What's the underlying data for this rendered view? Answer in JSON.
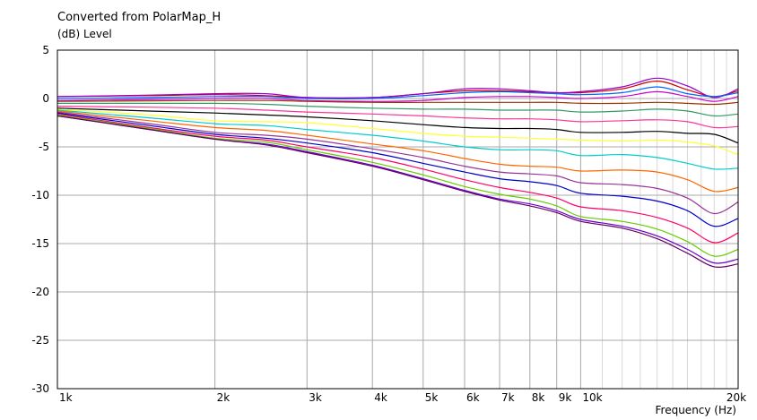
{
  "chart_data": {
    "type": "line",
    "title": "Converted from PolarMap_H",
    "ylabel_unit": "(dB)",
    "ylabel": "Level",
    "xlabel": "Frequency  (Hz)",
    "x_scale": "log",
    "xlim": [
      1000,
      20000
    ],
    "ylim": [
      -30,
      5
    ],
    "grid": true,
    "x_major_ticks": [
      1000,
      2000,
      3000,
      4000,
      5000,
      6000,
      7000,
      8000,
      9000,
      10000,
      20000
    ],
    "x_tick_labels": [
      "1k",
      "2k",
      "3k",
      "4k",
      "5k",
      "6k",
      "7k",
      "8k",
      "9k",
      "10k",
      "20k"
    ],
    "y_ticks": [
      5,
      0,
      -5,
      -10,
      -15,
      -20,
      -25,
      -30
    ],
    "y_tick_labels": [
      "5",
      "0",
      "-5",
      "-10",
      "-15",
      "-20",
      "-25",
      "-30"
    ],
    "x": [
      1000,
      1500,
      2000,
      2500,
      3000,
      4000,
      5000,
      6000,
      7000,
      8000,
      9000,
      10000,
      12000,
      14000,
      16000,
      18000,
      20000
    ],
    "series": [
      {
        "color": "#cc0000",
        "values": [
          0.2,
          0.3,
          0.4,
          0.3,
          0.1,
          0.1,
          0.5,
          0.8,
          0.8,
          0.7,
          0.6,
          0.6,
          1.0,
          1.8,
          0.9,
          0.2,
          0.8
        ]
      },
      {
        "color": "#9900cc",
        "values": [
          0.2,
          0.35,
          0.5,
          0.5,
          0.1,
          0.1,
          0.5,
          1.0,
          1.0,
          0.8,
          0.6,
          0.7,
          1.2,
          2.1,
          1.3,
          0.1,
          1.0
        ]
      },
      {
        "color": "#0066ff",
        "values": [
          0.0,
          0.1,
          0.2,
          0.2,
          0.0,
          0.0,
          0.3,
          0.6,
          0.7,
          0.6,
          0.5,
          0.4,
          0.6,
          1.2,
          0.5,
          0.2,
          0.6
        ]
      },
      {
        "color": "#cc00cc",
        "values": [
          -0.2,
          -0.1,
          0.0,
          0.0,
          -0.2,
          -0.3,
          -0.2,
          0.1,
          0.2,
          0.2,
          0.1,
          0.0,
          0.2,
          0.7,
          0.2,
          -0.3,
          0.2
        ]
      },
      {
        "color": "#993300",
        "values": [
          -0.3,
          -0.25,
          -0.2,
          -0.2,
          -0.3,
          -0.4,
          -0.4,
          -0.4,
          -0.4,
          -0.4,
          -0.4,
          -0.5,
          -0.5,
          -0.4,
          -0.5,
          -0.6,
          -0.4
        ]
      },
      {
        "color": "#339966",
        "values": [
          -0.5,
          -0.5,
          -0.5,
          -0.6,
          -0.8,
          -1.0,
          -1.1,
          -1.1,
          -1.2,
          -1.2,
          -1.2,
          -1.4,
          -1.3,
          -1.1,
          -1.3,
          -1.8,
          -1.6
        ]
      },
      {
        "color": "#ff3399",
        "values": [
          -0.8,
          -0.9,
          -1.0,
          -1.2,
          -1.4,
          -1.6,
          -1.8,
          -2.0,
          -2.1,
          -2.1,
          -2.2,
          -2.4,
          -2.3,
          -2.2,
          -2.4,
          -3.0,
          -2.9
        ]
      },
      {
        "color": "#000000",
        "values": [
          -1.0,
          -1.3,
          -1.5,
          -1.7,
          -1.9,
          -2.3,
          -2.7,
          -3.0,
          -3.1,
          -3.1,
          -3.2,
          -3.5,
          -3.5,
          -3.4,
          -3.6,
          -3.7,
          -4.6
        ]
      },
      {
        "color": "#ffff33",
        "values": [
          -1.1,
          -1.7,
          -2.3,
          -2.4,
          -2.5,
          -3.1,
          -3.6,
          -3.9,
          -4.0,
          -4.1,
          -4.2,
          -4.3,
          -4.4,
          -4.3,
          -4.5,
          -4.9,
          -5.8
        ]
      },
      {
        "color": "#00cccc",
        "values": [
          -1.2,
          -2.0,
          -2.6,
          -2.8,
          -3.2,
          -3.8,
          -4.4,
          -5.0,
          -5.3,
          -5.3,
          -5.4,
          -5.9,
          -5.8,
          -6.1,
          -6.7,
          -7.3,
          -7.2
        ]
      },
      {
        "color": "#ff6600",
        "values": [
          -1.3,
          -2.3,
          -3.0,
          -3.3,
          -3.8,
          -4.7,
          -5.4,
          -6.2,
          -6.8,
          -7.0,
          -7.1,
          -7.5,
          -7.4,
          -7.6,
          -8.4,
          -9.6,
          -9.2
        ]
      },
      {
        "color": "#993399",
        "values": [
          -1.4,
          -2.6,
          -3.5,
          -3.8,
          -4.2,
          -5.2,
          -6.1,
          -7.0,
          -7.6,
          -7.8,
          -8.0,
          -8.7,
          -8.9,
          -9.3,
          -10.3,
          -11.9,
          -10.7
        ]
      },
      {
        "color": "#0000cc",
        "values": [
          -1.5,
          -2.8,
          -3.7,
          -4.1,
          -4.6,
          -5.6,
          -6.7,
          -7.6,
          -8.3,
          -8.6,
          -9.0,
          -9.8,
          -10.1,
          -10.6,
          -11.6,
          -13.2,
          -12.4
        ]
      },
      {
        "color": "#ff0066",
        "values": [
          -1.6,
          -3.0,
          -3.9,
          -4.3,
          -5.0,
          -6.1,
          -7.3,
          -8.4,
          -9.2,
          -9.7,
          -10.3,
          -11.2,
          -11.6,
          -12.3,
          -13.4,
          -14.9,
          -13.9
        ]
      },
      {
        "color": "#66cc00",
        "values": [
          -1.7,
          -3.1,
          -4.1,
          -4.5,
          -5.3,
          -6.6,
          -7.9,
          -9.1,
          -9.9,
          -10.4,
          -11.1,
          -12.2,
          -12.7,
          -13.5,
          -14.8,
          -16.3,
          -15.6
        ]
      },
      {
        "color": "#6600cc",
        "values": [
          -1.8,
          -3.2,
          -4.2,
          -4.7,
          -5.5,
          -6.9,
          -8.3,
          -9.5,
          -10.4,
          -10.9,
          -11.6,
          -12.5,
          -13.2,
          -14.2,
          -15.6,
          -17.0,
          -16.6
        ]
      },
      {
        "color": "#660066",
        "values": [
          -1.8,
          -3.2,
          -4.2,
          -4.8,
          -5.6,
          -7.0,
          -8.4,
          -9.6,
          -10.5,
          -11.1,
          -11.8,
          -12.7,
          -13.4,
          -14.5,
          -16.0,
          -17.4,
          -17.1
        ]
      }
    ]
  }
}
